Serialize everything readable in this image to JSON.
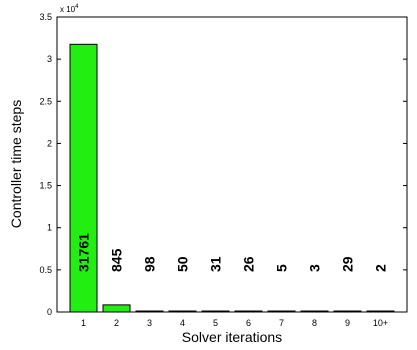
{
  "chart_data": {
    "type": "bar",
    "categories": [
      "1",
      "2",
      "3",
      "4",
      "5",
      "6",
      "7",
      "8",
      "9",
      "10+"
    ],
    "values": [
      31761,
      845,
      98,
      50,
      31,
      26,
      5,
      3,
      29,
      2
    ],
    "data_labels": [
      "31761",
      "845",
      "98",
      "50",
      "31",
      "26",
      "5",
      "3",
      "29",
      "2"
    ],
    "title": "",
    "xlabel": "Solver iterations",
    "ylabel": "Controller time steps",
    "y_tick_labels": [
      "0",
      "0.5",
      "1",
      "1.5",
      "2",
      "2.5",
      "3",
      "3.5"
    ],
    "y_tick_values": [
      0,
      5000,
      10000,
      15000,
      20000,
      25000,
      30000,
      35000
    ],
    "y_exponent_label": "x 10",
    "y_exponent_power": "4",
    "ylim": [
      0,
      35000
    ],
    "bar_color": "#22ee11",
    "grid": false,
    "legend": "none"
  }
}
